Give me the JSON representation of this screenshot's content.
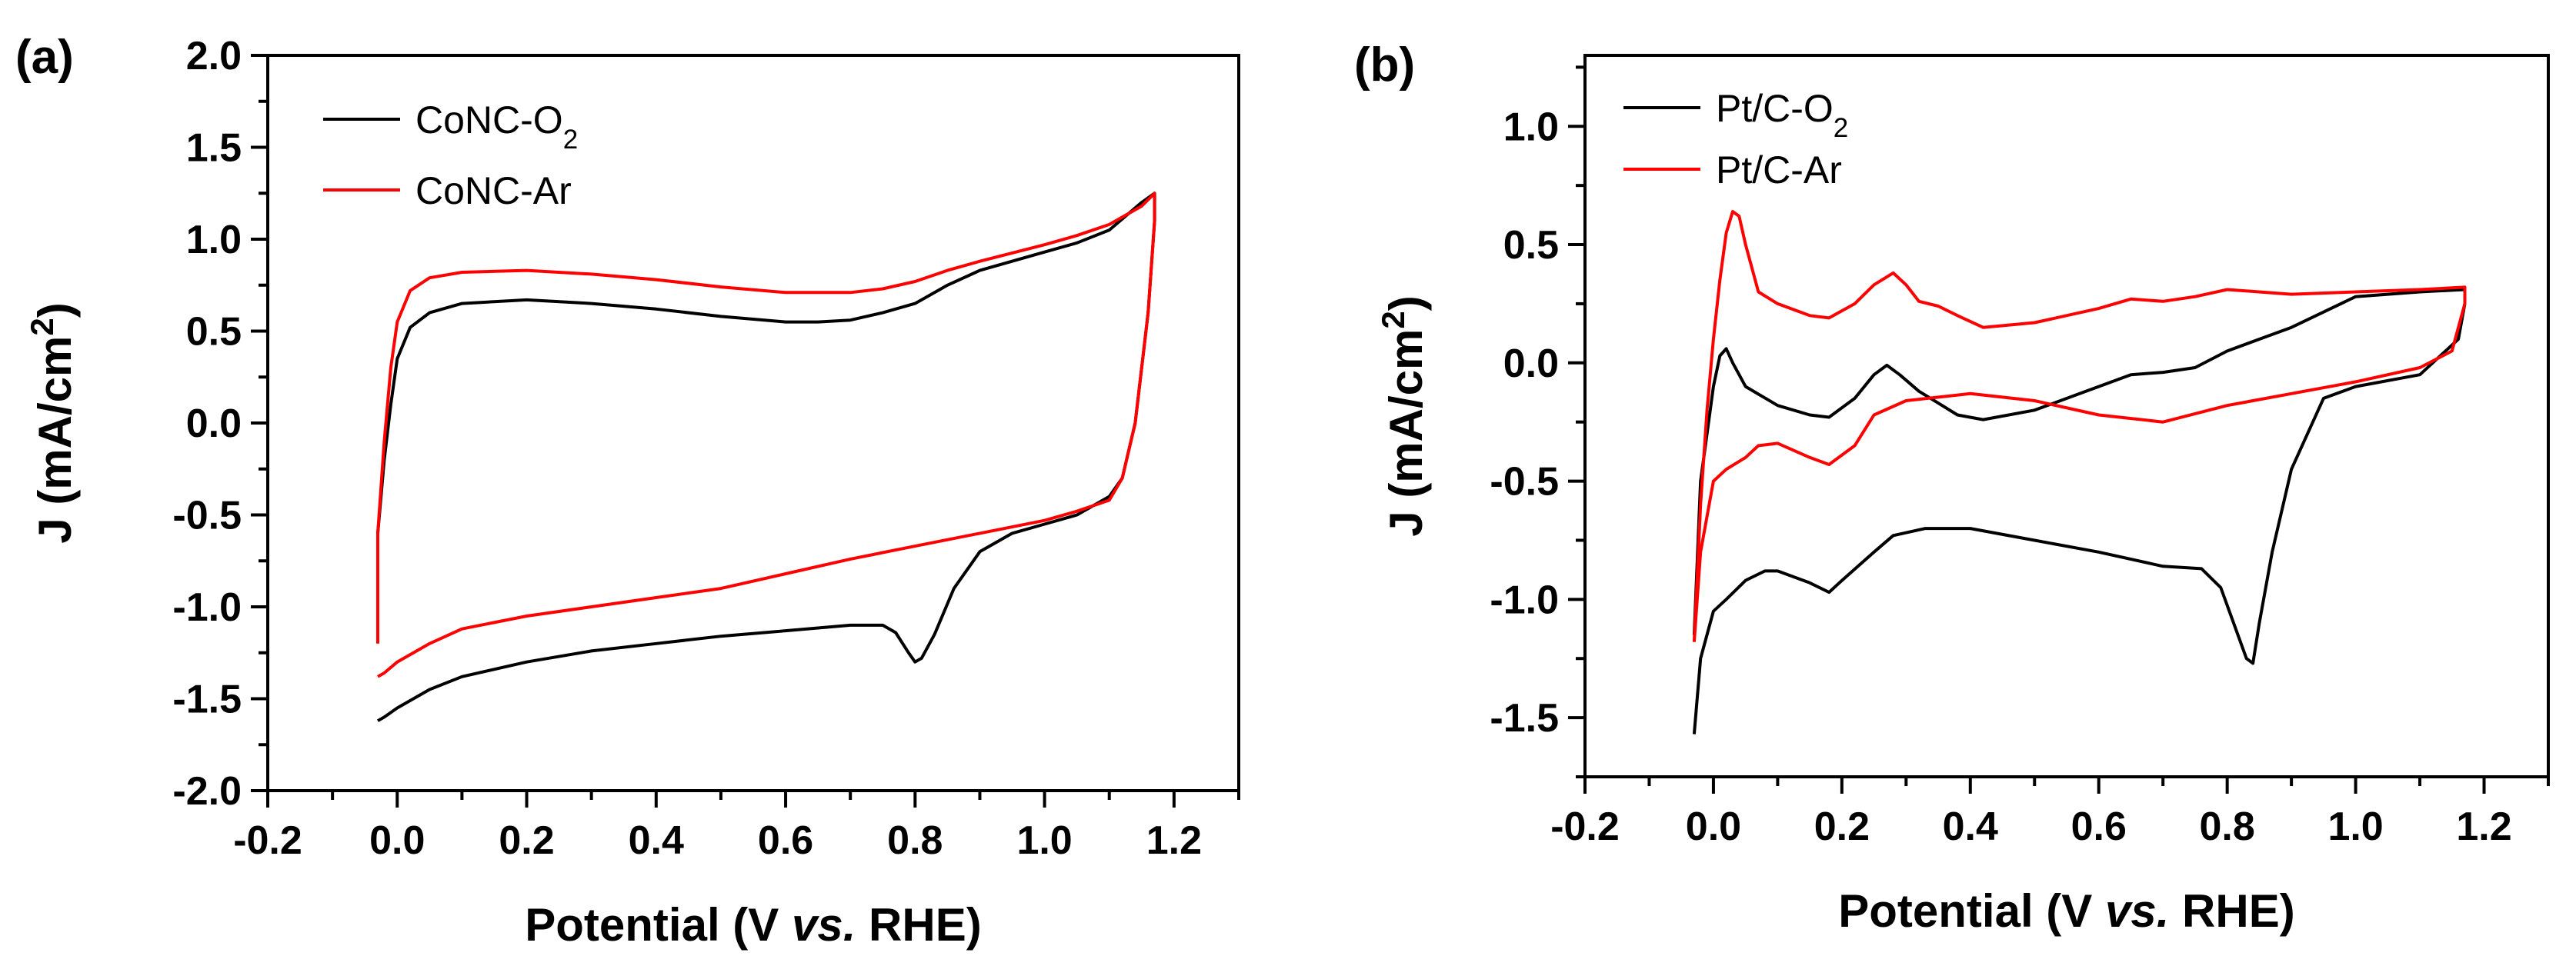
{
  "chart_data": [
    {
      "type": "line",
      "panel_label": "(a)",
      "xlabel": "Potential (V vs. RHE)",
      "ylabel": "J (mA/cm2)",
      "xlim": [
        -0.2,
        1.3
      ],
      "ylim": [
        -2.0,
        2.0
      ],
      "xticks": [
        -0.2,
        0.0,
        0.2,
        0.4,
        0.6,
        0.8,
        1.0,
        1.2
      ],
      "yticks": [
        -2.0,
        -1.5,
        -1.0,
        -0.5,
        0.0,
        0.5,
        1.0,
        1.5,
        2.0
      ],
      "xtick_labels": [
        "-0.2",
        "0.0",
        "0.2",
        "0.4",
        "0.6",
        "0.8",
        "1.0",
        "1.2"
      ],
      "ytick_labels": [
        "-2.0",
        "-1.5",
        "-1.0",
        "-0.5",
        "0.0",
        "0.5",
        "1.0",
        "1.5",
        "2.0"
      ],
      "legend": "top-left",
      "grid": false,
      "series": [
        {
          "name": "CoNC-O2",
          "color": "#000000",
          "points": [
            [
              -0.03,
              -1.15
            ],
            [
              -0.03,
              -0.6
            ],
            [
              -0.02,
              -0.2
            ],
            [
              -0.01,
              0.1
            ],
            [
              0.0,
              0.35
            ],
            [
              0.02,
              0.52
            ],
            [
              0.05,
              0.6
            ],
            [
              0.1,
              0.65
            ],
            [
              0.2,
              0.67
            ],
            [
              0.3,
              0.65
            ],
            [
              0.4,
              0.62
            ],
            [
              0.5,
              0.58
            ],
            [
              0.6,
              0.55
            ],
            [
              0.65,
              0.55
            ],
            [
              0.7,
              0.56
            ],
            [
              0.75,
              0.6
            ],
            [
              0.8,
              0.65
            ],
            [
              0.85,
              0.75
            ],
            [
              0.9,
              0.83
            ],
            [
              1.0,
              0.93
            ],
            [
              1.05,
              0.98
            ],
            [
              1.1,
              1.05
            ],
            [
              1.15,
              1.2
            ],
            [
              1.17,
              1.25
            ],
            [
              1.17,
              1.1
            ],
            [
              1.16,
              0.6
            ],
            [
              1.14,
              0.0
            ],
            [
              1.12,
              -0.3
            ],
            [
              1.1,
              -0.4
            ],
            [
              1.05,
              -0.5
            ],
            [
              1.0,
              -0.55
            ],
            [
              0.95,
              -0.6
            ],
            [
              0.9,
              -0.7
            ],
            [
              0.86,
              -0.9
            ],
            [
              0.83,
              -1.15
            ],
            [
              0.81,
              -1.28
            ],
            [
              0.8,
              -1.3
            ],
            [
              0.79,
              -1.25
            ],
            [
              0.77,
              -1.14
            ],
            [
              0.75,
              -1.1
            ],
            [
              0.7,
              -1.1
            ],
            [
              0.6,
              -1.13
            ],
            [
              0.5,
              -1.16
            ],
            [
              0.4,
              -1.2
            ],
            [
              0.3,
              -1.24
            ],
            [
              0.2,
              -1.3
            ],
            [
              0.1,
              -1.38
            ],
            [
              0.05,
              -1.45
            ],
            [
              0.0,
              -1.55
            ],
            [
              -0.02,
              -1.6
            ],
            [
              -0.03,
              -1.62
            ]
          ]
        },
        {
          "name": "CoNC-Ar",
          "color": "#ff0000",
          "points": [
            [
              -0.03,
              -1.2
            ],
            [
              -0.03,
              -0.6
            ],
            [
              -0.02,
              -0.1
            ],
            [
              -0.01,
              0.3
            ],
            [
              0.0,
              0.55
            ],
            [
              0.02,
              0.72
            ],
            [
              0.05,
              0.79
            ],
            [
              0.1,
              0.82
            ],
            [
              0.2,
              0.83
            ],
            [
              0.3,
              0.81
            ],
            [
              0.4,
              0.78
            ],
            [
              0.5,
              0.74
            ],
            [
              0.6,
              0.71
            ],
            [
              0.65,
              0.71
            ],
            [
              0.7,
              0.71
            ],
            [
              0.75,
              0.73
            ],
            [
              0.8,
              0.77
            ],
            [
              0.85,
              0.83
            ],
            [
              0.9,
              0.88
            ],
            [
              1.0,
              0.97
            ],
            [
              1.05,
              1.02
            ],
            [
              1.1,
              1.08
            ],
            [
              1.15,
              1.18
            ],
            [
              1.17,
              1.25
            ],
            [
              1.17,
              1.1
            ],
            [
              1.16,
              0.6
            ],
            [
              1.14,
              0.0
            ],
            [
              1.12,
              -0.3
            ],
            [
              1.1,
              -0.42
            ],
            [
              1.05,
              -0.48
            ],
            [
              1.0,
              -0.53
            ],
            [
              0.9,
              -0.6
            ],
            [
              0.8,
              -0.67
            ],
            [
              0.7,
              -0.74
            ],
            [
              0.6,
              -0.82
            ],
            [
              0.5,
              -0.9
            ],
            [
              0.4,
              -0.95
            ],
            [
              0.3,
              -1.0
            ],
            [
              0.2,
              -1.05
            ],
            [
              0.1,
              -1.12
            ],
            [
              0.05,
              -1.2
            ],
            [
              0.0,
              -1.3
            ],
            [
              -0.02,
              -1.36
            ],
            [
              -0.03,
              -1.38
            ]
          ]
        }
      ]
    },
    {
      "type": "line",
      "panel_label": "(b)",
      "xlabel": "Potential (V vs. RHE)",
      "ylabel": "J (mA/cm2)",
      "xlim": [
        -0.2,
        1.3
      ],
      "ylim": [
        -1.75,
        1.3
      ],
      "xticks": [
        -0.2,
        0.0,
        0.2,
        0.4,
        0.6,
        0.8,
        1.0,
        1.2
      ],
      "yticks": [
        -1.5,
        -1.0,
        -0.5,
        0.0,
        0.5,
        1.0
      ],
      "xtick_labels": [
        "-0.2",
        "0.0",
        "0.2",
        "0.4",
        "0.6",
        "0.8",
        "1.0",
        "1.2"
      ],
      "ytick_labels": [
        "-1.5",
        "-1.0",
        "-0.5",
        "0.0",
        "0.5",
        "1.0"
      ],
      "legend": "top-left",
      "grid": false,
      "series": [
        {
          "name": "Pt/C-O2",
          "color": "#000000",
          "points": [
            [
              -0.03,
              -1.15
            ],
            [
              -0.02,
              -0.5
            ],
            [
              -0.01,
              -0.3
            ],
            [
              0.0,
              -0.1
            ],
            [
              0.01,
              0.03
            ],
            [
              0.02,
              0.06
            ],
            [
              0.03,
              0.0
            ],
            [
              0.05,
              -0.1
            ],
            [
              0.1,
              -0.18
            ],
            [
              0.15,
              -0.22
            ],
            [
              0.18,
              -0.23
            ],
            [
              0.22,
              -0.15
            ],
            [
              0.25,
              -0.05
            ],
            [
              0.27,
              -0.01
            ],
            [
              0.29,
              -0.05
            ],
            [
              0.32,
              -0.12
            ],
            [
              0.35,
              -0.17
            ],
            [
              0.38,
              -0.22
            ],
            [
              0.42,
              -0.24
            ],
            [
              0.5,
              -0.2
            ],
            [
              0.6,
              -0.1
            ],
            [
              0.65,
              -0.05
            ],
            [
              0.7,
              -0.04
            ],
            [
              0.75,
              -0.02
            ],
            [
              0.8,
              0.05
            ],
            [
              0.85,
              0.1
            ],
            [
              0.9,
              0.15
            ],
            [
              1.0,
              0.28
            ],
            [
              1.1,
              0.3
            ],
            [
              1.17,
              0.31
            ],
            [
              1.17,
              0.25
            ],
            [
              1.16,
              0.1
            ],
            [
              1.1,
              -0.05
            ],
            [
              1.0,
              -0.1
            ],
            [
              0.95,
              -0.15
            ],
            [
              0.9,
              -0.45
            ],
            [
              0.87,
              -0.8
            ],
            [
              0.85,
              -1.1
            ],
            [
              0.84,
              -1.27
            ],
            [
              0.83,
              -1.25
            ],
            [
              0.81,
              -1.1
            ],
            [
              0.79,
              -0.95
            ],
            [
              0.76,
              -0.87
            ],
            [
              0.7,
              -0.86
            ],
            [
              0.6,
              -0.8
            ],
            [
              0.5,
              -0.75
            ],
            [
              0.4,
              -0.7
            ],
            [
              0.33,
              -0.7
            ],
            [
              0.28,
              -0.73
            ],
            [
              0.25,
              -0.8
            ],
            [
              0.2,
              -0.92
            ],
            [
              0.18,
              -0.97
            ],
            [
              0.15,
              -0.93
            ],
            [
              0.1,
              -0.88
            ],
            [
              0.08,
              -0.88
            ],
            [
              0.05,
              -0.92
            ],
            [
              0.02,
              -1.0
            ],
            [
              0.0,
              -1.05
            ],
            [
              -0.02,
              -1.25
            ],
            [
              -0.03,
              -1.57
            ]
          ]
        },
        {
          "name": "Pt/C-Ar",
          "color": "#ff0000",
          "points": [
            [
              -0.03,
              -1.18
            ],
            [
              -0.02,
              -0.6
            ],
            [
              -0.01,
              -0.2
            ],
            [
              0.0,
              0.1
            ],
            [
              0.01,
              0.35
            ],
            [
              0.02,
              0.55
            ],
            [
              0.03,
              0.64
            ],
            [
              0.04,
              0.62
            ],
            [
              0.05,
              0.5
            ],
            [
              0.07,
              0.3
            ],
            [
              0.1,
              0.25
            ],
            [
              0.15,
              0.2
            ],
            [
              0.18,
              0.19
            ],
            [
              0.22,
              0.25
            ],
            [
              0.25,
              0.33
            ],
            [
              0.28,
              0.38
            ],
            [
              0.3,
              0.33
            ],
            [
              0.32,
              0.26
            ],
            [
              0.35,
              0.24
            ],
            [
              0.38,
              0.2
            ],
            [
              0.42,
              0.15
            ],
            [
              0.5,
              0.17
            ],
            [
              0.6,
              0.23
            ],
            [
              0.65,
              0.27
            ],
            [
              0.7,
              0.26
            ],
            [
              0.75,
              0.28
            ],
            [
              0.8,
              0.31
            ],
            [
              0.9,
              0.29
            ],
            [
              1.0,
              0.3
            ],
            [
              1.1,
              0.31
            ],
            [
              1.17,
              0.32
            ],
            [
              1.17,
              0.25
            ],
            [
              1.15,
              0.05
            ],
            [
              1.1,
              -0.02
            ],
            [
              1.0,
              -0.08
            ],
            [
              0.9,
              -0.13
            ],
            [
              0.8,
              -0.18
            ],
            [
              0.7,
              -0.25
            ],
            [
              0.6,
              -0.22
            ],
            [
              0.5,
              -0.16
            ],
            [
              0.4,
              -0.13
            ],
            [
              0.3,
              -0.16
            ],
            [
              0.25,
              -0.22
            ],
            [
              0.22,
              -0.35
            ],
            [
              0.18,
              -0.43
            ],
            [
              0.15,
              -0.4
            ],
            [
              0.1,
              -0.34
            ],
            [
              0.07,
              -0.35
            ],
            [
              0.05,
              -0.4
            ],
            [
              0.02,
              -0.45
            ],
            [
              0.0,
              -0.5
            ],
            [
              -0.02,
              -0.8
            ],
            [
              -0.03,
              -1.18
            ]
          ]
        }
      ]
    }
  ]
}
